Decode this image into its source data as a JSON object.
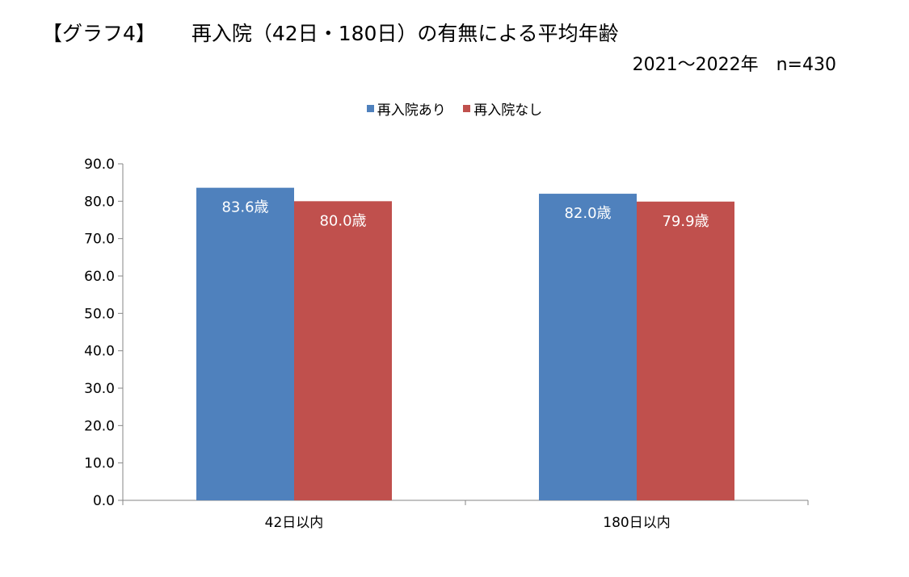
{
  "header": {
    "tag": "【グラフ4】",
    "title": "再入院（42日・180日）の有無による平均年齢",
    "subtitle": "2021～2022年　n=430"
  },
  "legend": {
    "items": [
      {
        "label": "再入院あり",
        "color": "#4f81bd"
      },
      {
        "label": "再入院なし",
        "color": "#c0504d"
      }
    ]
  },
  "chart_data": {
    "type": "bar",
    "title": "再入院（42日・180日）の有無による平均年齢",
    "subtitle": "2021～2022年　n=430",
    "categories": [
      "42日以内",
      "180日以内"
    ],
    "series": [
      {
        "name": "再入院あり",
        "values": [
          83.6,
          82.0
        ],
        "labels": [
          "83.6歳",
          "82.0歳"
        ],
        "color": "#4f81bd"
      },
      {
        "name": "再入院なし",
        "values": [
          80.0,
          79.9
        ],
        "labels": [
          "80.0歳",
          "79.9歳"
        ],
        "color": "#c0504d"
      }
    ],
    "ylim": [
      0,
      90
    ],
    "yticks": [
      0,
      10,
      20,
      30,
      40,
      50,
      60,
      70,
      80,
      90
    ],
    "ytick_labels": [
      "0.0",
      "10.0",
      "20.0",
      "30.0",
      "40.0",
      "50.0",
      "60.0",
      "70.0",
      "80.0",
      "90.0"
    ],
    "grid": false,
    "legend_position": "top"
  }
}
